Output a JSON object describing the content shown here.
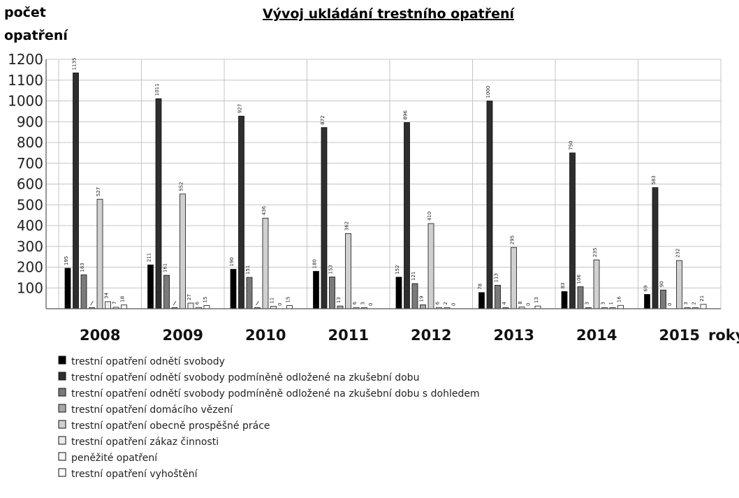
{
  "chart_data": {
    "type": "bar",
    "title": "Vývoj ukládání trestního opatření",
    "ylabel_line1": "počet",
    "ylabel_line2": "opatření",
    "xlabel": "roky",
    "categories": [
      "2008",
      "2009",
      "2010",
      "2011",
      "2012",
      "2013",
      "2014",
      "2015"
    ],
    "yticks": [
      100,
      200,
      300,
      400,
      500,
      600,
      700,
      800,
      900,
      1000,
      1100,
      1200
    ],
    "ylim": [
      0,
      1200
    ],
    "grid": true,
    "legend_position": "bottom",
    "series": [
      {
        "name": "trestní opatření odnětí svobody",
        "color": "#000000",
        "values": [
          195,
          211,
          190,
          180,
          152,
          78,
          83,
          69
        ],
        "labels": [
          "195",
          "211",
          "190",
          "180",
          "152",
          "78",
          "83",
          "69"
        ]
      },
      {
        "name": "trestní opatření odnětí svobody podmíněně odložené na zkušební dobu",
        "color": "#2e2e2e",
        "values": [
          1135,
          1011,
          927,
          872,
          896,
          1000,
          750,
          583
        ],
        "labels": [
          "1135",
          "1011",
          "927",
          "872",
          "896",
          "1000",
          "750",
          "583"
        ]
      },
      {
        "name": "trestní opatření odnětí svobody podmíněně odložené na zkušební dobu s dohledem",
        "color": "#7a7a7a",
        "values": [
          163,
          161,
          151,
          153,
          121,
          113,
          106,
          90
        ],
        "labels": [
          "163",
          "161",
          "151",
          "153",
          "121",
          "113",
          "106",
          "90"
        ]
      },
      {
        "name": "trestní opatření domácího vězení",
        "color": "#a8a8a8",
        "values": [
          1,
          1,
          1,
          13,
          19,
          4,
          3,
          0
        ],
        "labels": [
          "",
          "",
          "",
          "13",
          "19",
          "4",
          "3",
          "0"
        ]
      },
      {
        "name": "trestní opatření obecně prospěšné práce",
        "color": "#d0d0d0",
        "values": [
          527,
          552,
          436,
          362,
          410,
          295,
          235,
          232
        ],
        "labels": [
          "527",
          "552",
          "436",
          "362",
          "410",
          "295",
          "235",
          "232"
        ]
      },
      {
        "name": "trestní opatření zákaz činnosti",
        "color": "#ececec",
        "values": [
          34,
          27,
          11,
          6,
          6,
          8,
          3,
          3
        ],
        "labels": [
          "34",
          "27",
          "11",
          "6",
          "6",
          "8",
          "3",
          "3"
        ]
      },
      {
        "name": "peněžité opatření",
        "color": "#f7f7f7",
        "values": [
          7,
          6,
          0,
          3,
          2,
          0,
          1,
          2
        ],
        "labels": [
          "7",
          "6",
          "0",
          "3",
          "2",
          "0",
          "1",
          "2"
        ]
      },
      {
        "name": "trestní opatření vyhoštění",
        "color": "#ffffff",
        "values": [
          18,
          15,
          15,
          0,
          0,
          13,
          16,
          21
        ],
        "labels": [
          "18",
          "15",
          "15",
          "0",
          "0",
          "13",
          "16",
          "21"
        ]
      }
    ]
  }
}
